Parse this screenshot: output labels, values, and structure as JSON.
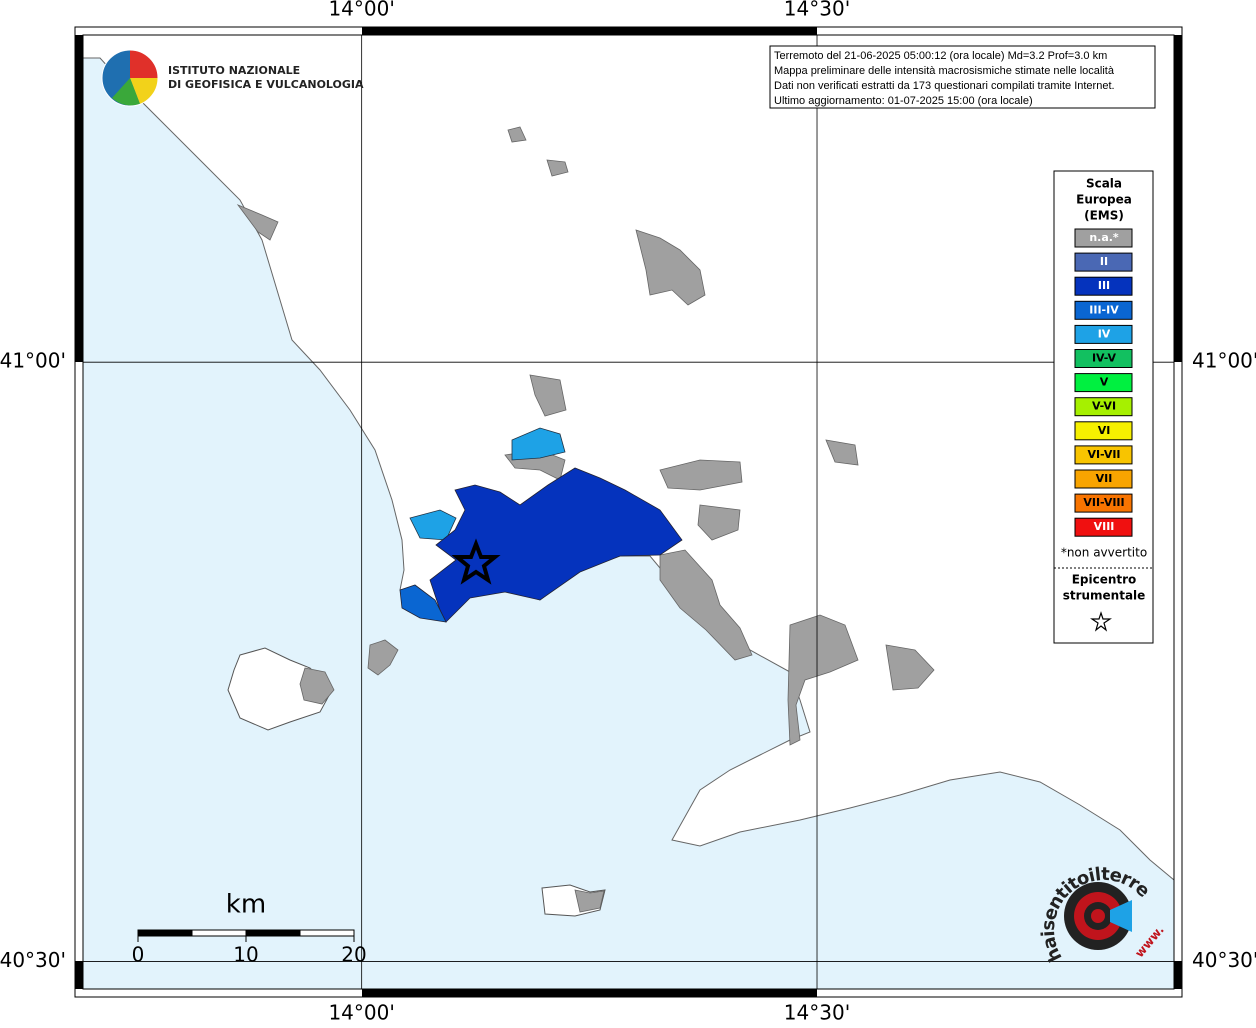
{
  "map": {
    "xlim": [
      13.694,
      14.892
    ],
    "ylim": [
      40.477,
      41.273
    ],
    "xticks": [
      {
        "value": 14,
        "label": "14°00'"
      },
      {
        "value": 14.5,
        "label": "14°30'"
      }
    ],
    "yticks": [
      {
        "value": 41,
        "label": "41°00'"
      },
      {
        "value": 40.5,
        "label": "40°30'"
      }
    ]
  },
  "logo": {
    "line1": "ISTITUTO NAZIONALE",
    "line2": "DI GEOFISICA E VULCANOLOGIA"
  },
  "info": [
    "Terremoto del 21-06-2025 05:00:12 (ora locale) Md=3.2 Prof=3.0 km",
    "Mappa preliminare delle intensità macrosismiche stimate nelle località",
    "Dati non verificati estratti da 173 questionari compilati tramite Internet.",
    "Ultimo aggiornamento: 01-07-2025 15:00 (ora locale)"
  ],
  "legend": {
    "title": [
      "Scala",
      "Europea",
      "(EMS)"
    ],
    "items": [
      {
        "label": "n.a.*",
        "color": "#a0a0a0",
        "text_color": "#ffffff"
      },
      {
        "label": "II",
        "color": "#4a68b4",
        "text_color": "#ffffff"
      },
      {
        "label": "III",
        "color": "#0533bd",
        "text_color": "#ffffff"
      },
      {
        "label": "III-IV",
        "color": "#0a66d2",
        "text_color": "#ffffff"
      },
      {
        "label": "IV",
        "color": "#1ea2e6",
        "text_color": "#ffffff"
      },
      {
        "label": "IV-V",
        "color": "#12c060",
        "text_color": "#000000"
      },
      {
        "label": "V",
        "color": "#00f040",
        "text_color": "#000000"
      },
      {
        "label": "V-VI",
        "color": "#a6f000",
        "text_color": "#000000"
      },
      {
        "label": "VI",
        "color": "#f6f000",
        "text_color": "#000000"
      },
      {
        "label": "VI-VII",
        "color": "#f8c400",
        "text_color": "#000000"
      },
      {
        "label": "VII",
        "color": "#f8a400",
        "text_color": "#000000"
      },
      {
        "label": "VII-VIII",
        "color": "#f87400",
        "text_color": "#000000"
      },
      {
        "label": "VIII",
        "color": "#f01010",
        "text_color": "#ffffff"
      }
    ],
    "note": "*non avvertito",
    "epicenter": [
      "Epicentro",
      "strumentale"
    ]
  },
  "scale_bar": {
    "unit": "km",
    "ticks": [
      0,
      10,
      20
    ]
  },
  "badge": {
    "text": "haisentitoilterremoto.it",
    "prefix": "www."
  }
}
